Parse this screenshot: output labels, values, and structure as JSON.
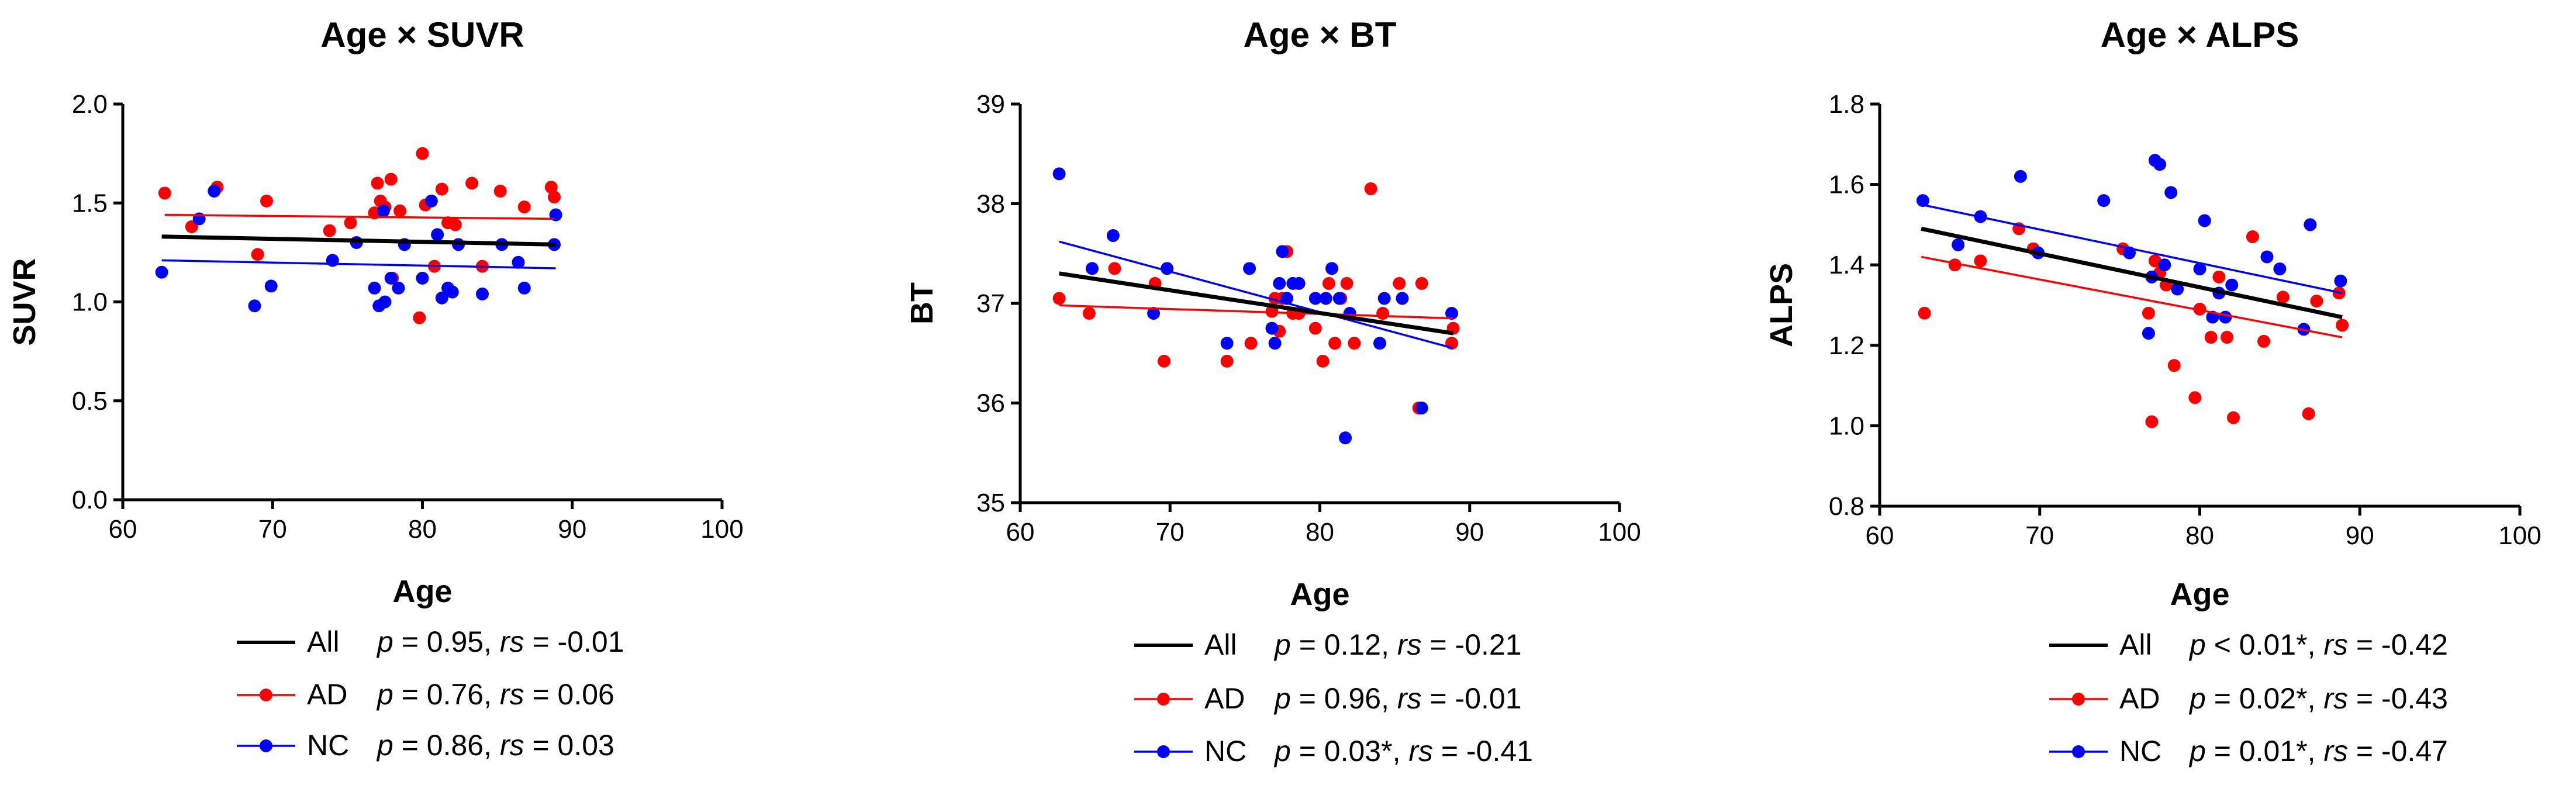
{
  "colors": {
    "All": "#000000",
    "AD": "#ff0000",
    "NC": "#0000ff"
  },
  "chart_data": [
    {
      "type": "scatter",
      "title": "Age × SUVR",
      "xlabel": "Age",
      "ylabel": "SUVR",
      "xlim": [
        60,
        100
      ],
      "ylim": [
        0.0,
        2.0
      ],
      "xticks": [
        60,
        70,
        80,
        90,
        100
      ],
      "xtick_labels": [
        "60",
        "70",
        "80",
        "90",
        "100"
      ],
      "yticks": [
        0.0,
        0.5,
        1.0,
        1.5,
        2.0
      ],
      "ytick_labels": [
        "0.0",
        "0.5",
        "1.0",
        "1.5",
        "2.0"
      ],
      "series": [
        {
          "name": "AD",
          "points": [
            [
              62.8,
              1.55
            ],
            [
              64.6,
              1.38
            ],
            [
              66.3,
              1.58
            ],
            [
              69.0,
              1.24
            ],
            [
              69.6,
              1.51
            ],
            [
              73.8,
              1.36
            ],
            [
              75.2,
              1.4
            ],
            [
              76.8,
              1.45
            ],
            [
              77.0,
              1.6
            ],
            [
              77.2,
              1.51
            ],
            [
              77.5,
              1.48
            ],
            [
              77.9,
              1.62
            ],
            [
              78.5,
              1.46
            ],
            [
              79.8,
              0.92
            ],
            [
              80.0,
              1.75
            ],
            [
              80.2,
              1.49
            ],
            [
              80.8,
              1.18
            ],
            [
              81.3,
              1.57
            ],
            [
              81.7,
              1.4
            ],
            [
              82.2,
              1.39
            ],
            [
              83.3,
              1.6
            ],
            [
              84.0,
              1.18
            ],
            [
              85.2,
              1.56
            ],
            [
              86.8,
              1.48
            ],
            [
              88.6,
              1.58
            ],
            [
              88.8,
              1.53
            ],
            [
              78.0,
              1.12
            ]
          ]
        },
        {
          "name": "NC",
          "points": [
            [
              62.6,
              1.15
            ],
            [
              65.1,
              1.42
            ],
            [
              66.1,
              1.56
            ],
            [
              68.8,
              0.98
            ],
            [
              69.9,
              1.08
            ],
            [
              74.0,
              1.21
            ],
            [
              75.6,
              1.3
            ],
            [
              76.8,
              1.07
            ],
            [
              77.1,
              0.98
            ],
            [
              77.4,
              1.46
            ],
            [
              77.5,
              1.0
            ],
            [
              77.9,
              1.12
            ],
            [
              78.4,
              1.07
            ],
            [
              78.8,
              1.29
            ],
            [
              80.0,
              1.12
            ],
            [
              80.6,
              1.51
            ],
            [
              81.0,
              1.34
            ],
            [
              81.3,
              1.02
            ],
            [
              81.7,
              1.07
            ],
            [
              82.0,
              1.05
            ],
            [
              82.4,
              1.29
            ],
            [
              84.0,
              1.04
            ],
            [
              85.3,
              1.29
            ],
            [
              86.4,
              1.2
            ],
            [
              86.8,
              1.07
            ],
            [
              88.8,
              1.29
            ],
            [
              88.9,
              1.44
            ]
          ]
        }
      ],
      "fit_lines": [
        {
          "name": "All",
          "x": [
            62.6,
            88.9
          ],
          "y": [
            1.33,
            1.29
          ]
        },
        {
          "name": "AD",
          "x": [
            62.8,
            88.8
          ],
          "y": [
            1.44,
            1.42
          ]
        },
        {
          "name": "NC",
          "x": [
            62.6,
            88.9
          ],
          "y": [
            1.21,
            1.17
          ]
        }
      ],
      "legend": [
        {
          "name": "All",
          "label": "All",
          "stats": "p = 0.95, rs = -0.01"
        },
        {
          "name": "AD",
          "label": "AD",
          "stats": "p = 0.76, rs = 0.06"
        },
        {
          "name": "NC",
          "label": "NC",
          "stats": "p = 0.86, rs = 0.03"
        }
      ]
    },
    {
      "type": "scatter",
      "title": "Age × BT",
      "xlabel": "Age",
      "ylabel": "BT",
      "xlim": [
        60,
        100
      ],
      "ylim": [
        35,
        39
      ],
      "xticks": [
        60,
        70,
        80,
        90,
        100
      ],
      "xtick_labels": [
        "60",
        "70",
        "80",
        "90",
        "100"
      ],
      "yticks": [
        35,
        36,
        37,
        38,
        39
      ],
      "ytick_labels": [
        "35",
        "36",
        "37",
        "38",
        "39"
      ],
      "series": [
        {
          "name": "AD",
          "points": [
            [
              62.6,
              37.05
            ],
            [
              64.6,
              36.9
            ],
            [
              66.3,
              37.35
            ],
            [
              69.0,
              37.2
            ],
            [
              69.6,
              36.42
            ],
            [
              73.8,
              36.42
            ],
            [
              75.4,
              36.6
            ],
            [
              76.8,
              36.92
            ],
            [
              77.0,
              37.05
            ],
            [
              77.3,
              36.72
            ],
            [
              77.5,
              37.05
            ],
            [
              77.8,
              37.52
            ],
            [
              78.2,
              36.9
            ],
            [
              78.6,
              36.9
            ],
            [
              79.7,
              36.75
            ],
            [
              80.2,
              36.42
            ],
            [
              80.6,
              37.2
            ],
            [
              81.0,
              36.6
            ],
            [
              81.4,
              37.05
            ],
            [
              81.8,
              37.2
            ],
            [
              82.3,
              36.6
            ],
            [
              83.4,
              38.15
            ],
            [
              84.2,
              36.9
            ],
            [
              85.3,
              37.2
            ],
            [
              86.6,
              35.95
            ],
            [
              86.8,
              37.2
            ],
            [
              88.8,
              36.6
            ],
            [
              88.9,
              36.75
            ]
          ]
        },
        {
          "name": "NC",
          "points": [
            [
              62.6,
              38.3
            ],
            [
              64.8,
              37.35
            ],
            [
              66.2,
              37.68
            ],
            [
              68.9,
              36.9
            ],
            [
              69.8,
              37.35
            ],
            [
              73.8,
              36.6
            ],
            [
              75.3,
              37.35
            ],
            [
              76.8,
              36.75
            ],
            [
              77.0,
              36.6
            ],
            [
              77.3,
              37.2
            ],
            [
              77.5,
              37.52
            ],
            [
              77.8,
              37.05
            ],
            [
              78.2,
              37.2
            ],
            [
              78.6,
              37.2
            ],
            [
              79.7,
              37.05
            ],
            [
              80.4,
              37.05
            ],
            [
              80.8,
              37.35
            ],
            [
              81.3,
              37.05
            ],
            [
              81.7,
              35.65
            ],
            [
              82.0,
              36.9
            ],
            [
              84.0,
              36.6
            ],
            [
              84.3,
              37.05
            ],
            [
              85.5,
              37.05
            ],
            [
              86.8,
              35.95
            ],
            [
              88.8,
              36.9
            ]
          ]
        }
      ],
      "fit_lines": [
        {
          "name": "All",
          "x": [
            62.6,
            88.9
          ],
          "y": [
            37.3,
            36.7
          ]
        },
        {
          "name": "AD",
          "x": [
            62.6,
            88.9
          ],
          "y": [
            36.98,
            36.85
          ]
        },
        {
          "name": "NC",
          "x": [
            62.6,
            88.9
          ],
          "y": [
            37.62,
            36.55
          ]
        }
      ],
      "legend": [
        {
          "name": "All",
          "label": "All",
          "stats": "p = 0.12, rs = -0.21"
        },
        {
          "name": "AD",
          "label": "AD",
          "stats": "p = 0.96, rs = -0.01"
        },
        {
          "name": "NC",
          "label": "NC",
          "stats": "p = 0.03*, rs = -0.41"
        }
      ]
    },
    {
      "type": "scatter",
      "title": "Age × ALPS",
      "xlabel": "Age",
      "ylabel": "ALPS",
      "xlim": [
        60,
        100
      ],
      "ylim": [
        0.8,
        1.8
      ],
      "xticks": [
        60,
        70,
        80,
        90,
        100
      ],
      "xtick_labels": [
        "60",
        "70",
        "80",
        "90",
        "100"
      ],
      "yticks": [
        0.8,
        1.0,
        1.2,
        1.4,
        1.6,
        1.8
      ],
      "ytick_labels": [
        "0.8",
        "1.0",
        "1.2",
        "1.4",
        "1.6",
        "1.8"
      ],
      "series": [
        {
          "name": "AD",
          "points": [
            [
              62.8,
              1.28
            ],
            [
              64.7,
              1.4
            ],
            [
              66.3,
              1.41
            ],
            [
              68.7,
              1.49
            ],
            [
              69.6,
              1.44
            ],
            [
              75.2,
              1.44
            ],
            [
              76.8,
              1.28
            ],
            [
              77.0,
              1.01
            ],
            [
              77.2,
              1.41
            ],
            [
              77.5,
              1.38
            ],
            [
              77.9,
              1.35
            ],
            [
              78.4,
              1.15
            ],
            [
              79.7,
              1.07
            ],
            [
              80.0,
              1.29
            ],
            [
              80.3,
              1.51
            ],
            [
              80.7,
              1.22
            ],
            [
              81.2,
              1.37
            ],
            [
              81.7,
              1.22
            ],
            [
              82.1,
              1.02
            ],
            [
              83.3,
              1.47
            ],
            [
              84.0,
              1.21
            ],
            [
              85.2,
              1.32
            ],
            [
              86.8,
              1.03
            ],
            [
              87.3,
              1.31
            ],
            [
              88.7,
              1.33
            ],
            [
              88.9,
              1.25
            ]
          ]
        },
        {
          "name": "NC",
          "points": [
            [
              62.7,
              1.56
            ],
            [
              64.9,
              1.45
            ],
            [
              66.3,
              1.52
            ],
            [
              68.8,
              1.62
            ],
            [
              69.9,
              1.43
            ],
            [
              74.0,
              1.56
            ],
            [
              75.6,
              1.43
            ],
            [
              76.8,
              1.23
            ],
            [
              77.0,
              1.37
            ],
            [
              77.2,
              1.66
            ],
            [
              77.5,
              1.65
            ],
            [
              77.8,
              1.4
            ],
            [
              78.2,
              1.58
            ],
            [
              78.6,
              1.34
            ],
            [
              80.0,
              1.39
            ],
            [
              80.3,
              1.51
            ],
            [
              80.8,
              1.27
            ],
            [
              81.2,
              1.33
            ],
            [
              81.6,
              1.27
            ],
            [
              82.0,
              1.35
            ],
            [
              84.2,
              1.42
            ],
            [
              85.0,
              1.39
            ],
            [
              86.5,
              1.24
            ],
            [
              86.9,
              1.5
            ],
            [
              88.8,
              1.36
            ]
          ]
        }
      ],
      "fit_lines": [
        {
          "name": "All",
          "x": [
            62.6,
            88.9
          ],
          "y": [
            1.49,
            1.27
          ]
        },
        {
          "name": "AD",
          "x": [
            62.6,
            88.9
          ],
          "y": [
            1.42,
            1.22
          ]
        },
        {
          "name": "NC",
          "x": [
            62.6,
            88.9
          ],
          "y": [
            1.55,
            1.33
          ]
        }
      ],
      "legend": [
        {
          "name": "All",
          "label": "All",
          "stats": "p < 0.01*, rs = -0.42"
        },
        {
          "name": "AD",
          "label": "AD",
          "stats": "p = 0.02*, rs = -0.43"
        },
        {
          "name": "NC",
          "label": "NC",
          "stats": "p = 0.01*, rs = -0.47"
        }
      ]
    }
  ]
}
